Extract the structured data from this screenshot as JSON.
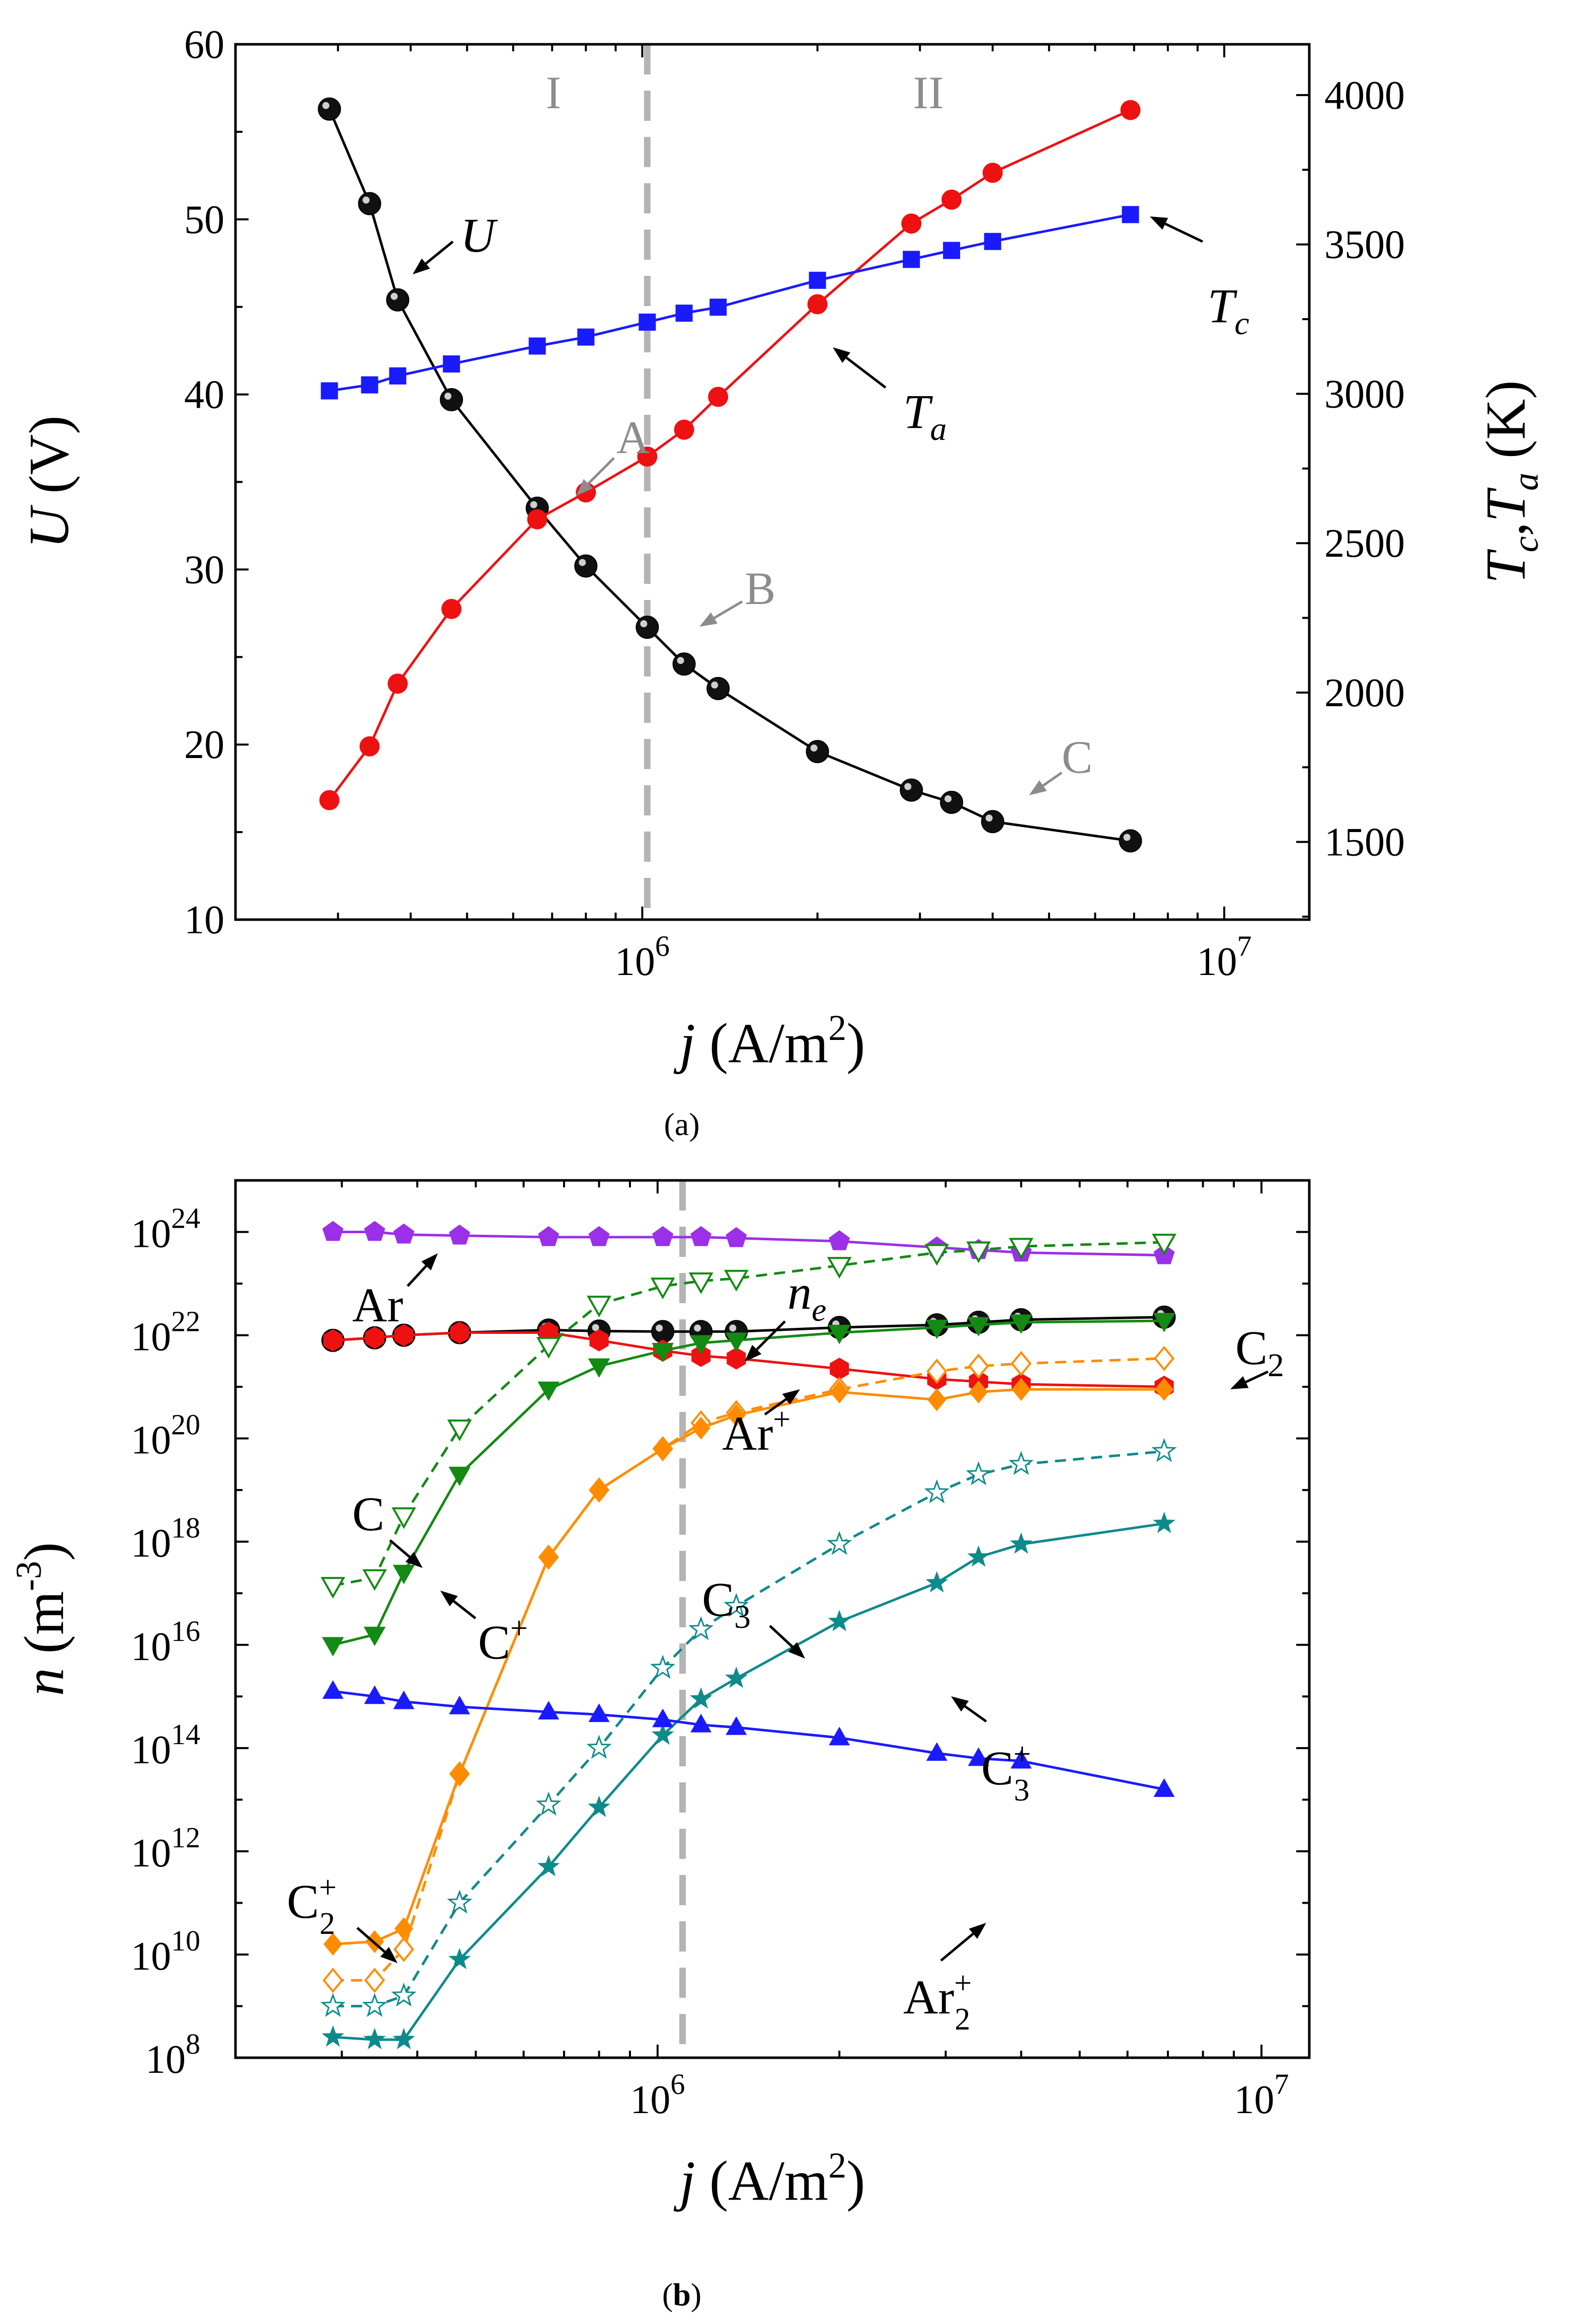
{
  "colors": {
    "black": "#000000",
    "red": "#ee1111",
    "blue": "#1a1aff",
    "gray": "#b4b4b4",
    "purple": "#9b30e8",
    "green": "#138a13",
    "orange": "#ff8c00",
    "teal": "#0f8a8a"
  },
  "chart_data": [
    {
      "id": "a",
      "type": "line",
      "caption": "(a)",
      "xscale": "log",
      "xlim": [
        200000,
        14000000
      ],
      "xticks": [
        {
          "v": 1000000,
          "base": "10",
          "exp": "6"
        },
        {
          "v": 10000000,
          "base": "10",
          "exp": "7"
        }
      ],
      "xlabel": {
        "i": "j",
        "rest": " (A/m",
        "sup": "2",
        "close": ")"
      },
      "ylabel_left": {
        "i": "U",
        "rest": " (V)"
      },
      "ylim_left": [
        10,
        60
      ],
      "yticks_left": [
        "10",
        "20",
        "30",
        "40",
        "50",
        "60"
      ],
      "ylabel_right": {
        "i1": "T",
        "s1": "c",
        "mid": ",",
        "i2": "T",
        "s2": "a",
        "rest": " (K)"
      },
      "ylim_right": [
        1240,
        4170
      ],
      "yticks_right": [
        "1500",
        "2000",
        "2500",
        "3000",
        "3500",
        "4000"
      ],
      "divider_x": 1020000,
      "region_labels": [
        "I",
        "II"
      ],
      "series": [
        {
          "name": "U",
          "axis": "left",
          "color": "#000000",
          "marker": "sphere",
          "x": [
            290000,
            340000,
            380000,
            470000,
            660000,
            800000,
            1020000,
            1180000,
            1350000,
            2000000,
            2900000,
            3400000,
            4000000,
            6900000
          ],
          "y": [
            56.3,
            50.9,
            45.4,
            39.7,
            33.5,
            30.2,
            26.7,
            24.6,
            23.2,
            19.6,
            17.4,
            16.7,
            15.6,
            14.5
          ]
        },
        {
          "name": "T_a",
          "axis": "right",
          "color": "#ee1111",
          "marker": "circle",
          "x": [
            290000,
            340000,
            380000,
            470000,
            660000,
            800000,
            1020000,
            1180000,
            1350000,
            2000000,
            2900000,
            3400000,
            4000000,
            6900000
          ],
          "y": [
            1640,
            1820,
            2030,
            2280,
            2580,
            2670,
            2790,
            2880,
            2990,
            3300,
            3570,
            3650,
            3740,
            3950
          ]
        },
        {
          "name": "T_c",
          "axis": "right",
          "color": "#1a1aff",
          "marker": "square",
          "x": [
            290000,
            340000,
            380000,
            470000,
            660000,
            800000,
            1020000,
            1180000,
            1350000,
            2000000,
            2900000,
            3400000,
            4000000,
            6900000
          ],
          "y": [
            3010,
            3030,
            3060,
            3100,
            3160,
            3190,
            3240,
            3270,
            3290,
            3380,
            3450,
            3480,
            3510,
            3600
          ]
        }
      ],
      "annotations": [
        {
          "key": "U",
          "text": "U"
        },
        {
          "key": "Tc",
          "text": "T",
          "sub": "c"
        },
        {
          "key": "Ta",
          "text": "T",
          "sub": "a"
        },
        {
          "key": "A",
          "text": "A"
        },
        {
          "key": "B",
          "text": "B"
        },
        {
          "key": "C",
          "text": "C"
        }
      ]
    },
    {
      "id": "b",
      "type": "line",
      "caption": "(b)",
      "xscale": "log",
      "yscale": "log",
      "xlim": [
        200000,
        12000000
      ],
      "xticks": [
        {
          "v": 1000000,
          "base": "10",
          "exp": "6"
        },
        {
          "v": 10000000,
          "base": "10",
          "exp": "7"
        }
      ],
      "xlabel": {
        "i": "j",
        "rest": " (A/m",
        "sup": "2",
        "close": ")"
      },
      "ylabel": {
        "i": "n",
        "rest": " (m",
        "sup": "-3",
        "close": ")"
      },
      "ylim_exp": [
        8,
        25
      ],
      "yticks": [
        {
          "base": "10",
          "exp": "8"
        },
        {
          "base": "10",
          "exp": "10"
        },
        {
          "base": "10",
          "exp": "12"
        },
        {
          "base": "10",
          "exp": "14"
        },
        {
          "base": "10",
          "exp": "16"
        },
        {
          "base": "10",
          "exp": "18"
        },
        {
          "base": "10",
          "exp": "20"
        },
        {
          "base": "10",
          "exp": "22"
        },
        {
          "base": "10",
          "exp": "24"
        }
      ],
      "divider_x": 1100000,
      "x": [
        290000,
        340000,
        380000,
        470000,
        660000,
        800000,
        1020000,
        1180000,
        1350000,
        2000000,
        2900000,
        3400000,
        4000000,
        6900000
      ],
      "series": [
        {
          "name": "Ar",
          "color": "#9b30e8",
          "marker": "pentagon",
          "dash": false,
          "log10_values": [
            24.0,
            24.0,
            23.95,
            23.93,
            23.9,
            23.9,
            23.9,
            23.9,
            23.88,
            23.82,
            23.7,
            23.65,
            23.6,
            23.55
          ]
        },
        {
          "name": "n_e",
          "color": "#000000",
          "marker": "sphere",
          "dash": false,
          "log10_values": [
            21.9,
            21.95,
            22.0,
            22.05,
            22.1,
            22.08,
            22.07,
            22.07,
            22.07,
            22.15,
            22.2,
            22.25,
            22.3,
            22.35
          ]
        },
        {
          "name": "Ar+",
          "color": "#ee1111",
          "marker": "hexagon",
          "dash": false,
          "log10_values": [
            21.9,
            21.95,
            22.0,
            22.05,
            22.05,
            21.9,
            21.7,
            21.6,
            21.55,
            21.35,
            21.15,
            21.1,
            21.05,
            21.0
          ]
        },
        {
          "name": "C",
          "color": "#138a13",
          "marker": "tri-down-open",
          "dash": true,
          "log10_values": [
            17.15,
            17.3,
            18.5,
            20.2,
            21.8,
            22.6,
            22.95,
            23.05,
            23.1,
            23.35,
            23.6,
            23.65,
            23.72,
            23.8
          ]
        },
        {
          "name": "C+",
          "color": "#138a13",
          "marker": "tri-down",
          "dash": false,
          "log10_values": [
            16.0,
            16.2,
            17.4,
            19.3,
            20.95,
            21.4,
            21.7,
            21.85,
            21.9,
            22.05,
            22.15,
            22.2,
            22.25,
            22.28
          ]
        },
        {
          "name": "C2",
          "color": "#ff8c00",
          "marker": "diamond-open",
          "dash": true,
          "log10_values": [
            9.5,
            9.5,
            10.1,
            13.5,
            17.7,
            19.0,
            19.8,
            20.3,
            20.5,
            20.95,
            21.3,
            21.4,
            21.45,
            21.55
          ]
        },
        {
          "name": "C2+",
          "color": "#ff8c00",
          "marker": "diamond",
          "dash": false,
          "log10_values": [
            10.2,
            10.25,
            10.5,
            13.5,
            17.7,
            19.0,
            19.8,
            20.2,
            20.45,
            20.9,
            20.75,
            20.9,
            20.95,
            20.95
          ]
        },
        {
          "name": "C3",
          "color": "#0f8a8a",
          "marker": "star-open",
          "dash": true,
          "log10_values": [
            9.0,
            9.0,
            9.2,
            11.0,
            12.9,
            14.0,
            15.55,
            16.3,
            16.75,
            17.95,
            18.95,
            19.3,
            19.5,
            19.75
          ]
        },
        {
          "name": "C3+",
          "color": "#0f8a8a",
          "marker": "star",
          "dash": false,
          "log10_values": [
            8.4,
            8.35,
            8.35,
            9.9,
            11.7,
            12.85,
            14.25,
            14.95,
            15.35,
            16.45,
            17.2,
            17.7,
            17.95,
            18.35
          ]
        },
        {
          "name": "Ar2+",
          "color": "#1a1aff",
          "marker": "triangle",
          "dash": false,
          "log10_values": [
            15.1,
            15.0,
            14.9,
            14.8,
            14.7,
            14.65,
            14.55,
            14.45,
            14.4,
            14.2,
            13.9,
            13.8,
            13.75,
            13.2
          ]
        }
      ],
      "annotations": [
        {
          "key": "Ar",
          "text": "Ar"
        },
        {
          "key": "ne",
          "text": "n",
          "sub": "e"
        },
        {
          "key": "C2",
          "text": "C",
          "sub": "2"
        },
        {
          "key": "Arp",
          "text": "Ar",
          "sup": "+"
        },
        {
          "key": "C",
          "text": "C"
        },
        {
          "key": "Cp",
          "text": "C",
          "sup": "+"
        },
        {
          "key": "C3",
          "text": "C",
          "sub": "3"
        },
        {
          "key": "C3p",
          "text": "C",
          "sub": "3",
          "sup": "+"
        },
        {
          "key": "Ar2p",
          "text": "Ar",
          "sub": "2",
          "sup": "+"
        },
        {
          "key": "C2p",
          "text": "C",
          "sub": "2",
          "sup": "+"
        }
      ]
    }
  ]
}
